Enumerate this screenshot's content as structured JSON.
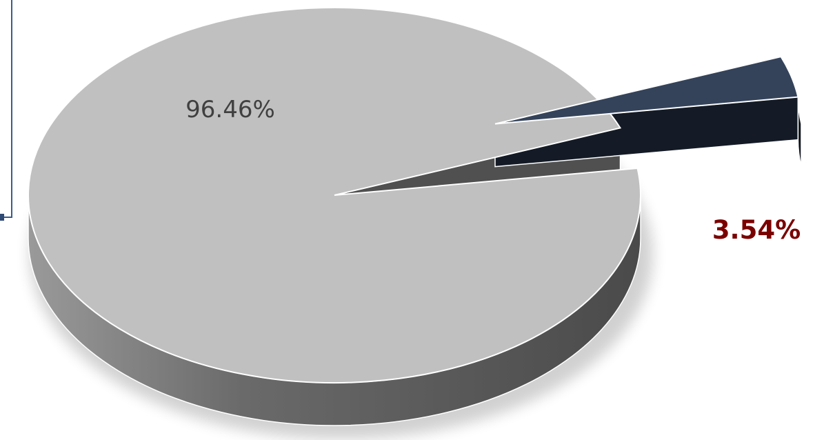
{
  "chart_data": {
    "type": "pie",
    "style": "3d-exploded",
    "categories": [
      "",
      ""
    ],
    "values": [
      96.46,
      3.54
    ],
    "labels": [
      "96.46%",
      "3.54%"
    ],
    "colors": {
      "main_top": "#c0c0c0",
      "main_side_dark": "#4c4c4c",
      "main_side_light": "#8a8a8a",
      "slice_top": "#34435a",
      "slice_side": "#141b26",
      "label_main": "#404040",
      "label_slice": "#7a0000"
    },
    "title": "",
    "legend": "none"
  }
}
